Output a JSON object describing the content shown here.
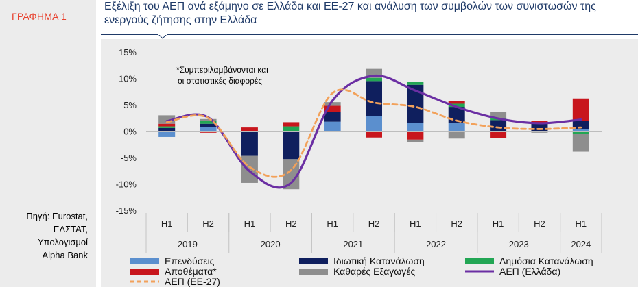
{
  "sidebar": {
    "graph_label": "ΓΡΑΦΗΜΑ 1",
    "source_lines": [
      "Πηγή: Eurostat,",
      "ΕΛΣΤΑΤ,",
      "Υπολογισμοί",
      "Alpha Bank"
    ]
  },
  "header": {
    "title": "Εξέλιξη του ΑΕΠ ανά εξάμηνο σε Ελλάδα και ΕΕ-27 και ανάλυση των συμβολών των συνιστωσών της ενεργούς ζήτησης στην Ελλάδα"
  },
  "colors": {
    "investment": "#5b8fce",
    "private_consumption": "#0f1f5e",
    "public_consumption": "#22a654",
    "inventories": "#c8161d",
    "net_exports": "#8e8e8e",
    "gdp_greece": "#6b2fa3",
    "gdp_eu27": "#f2a15a",
    "title_color": "#1f3a68"
  },
  "chart_data": {
    "type": "bar",
    "stacked": true,
    "categories": [
      "H1",
      "H2",
      "H1",
      "H2",
      "H1",
      "H2",
      "H1",
      "H2",
      "H1",
      "H2",
      "H1"
    ],
    "years": [
      {
        "label": "2019",
        "span": [
          0,
          1
        ]
      },
      {
        "label": "2020",
        "span": [
          2,
          3
        ]
      },
      {
        "label": "2021",
        "span": [
          4,
          5
        ]
      },
      {
        "label": "2022",
        "span": [
          6,
          7
        ]
      },
      {
        "label": "2023",
        "span": [
          8,
          9
        ]
      },
      {
        "label": "2024",
        "span": [
          10,
          10
        ]
      }
    ],
    "ylim": [
      -15,
      15
    ],
    "yticks": [
      15,
      10,
      5,
      0,
      -5,
      -10,
      -15
    ],
    "ytick_labels": [
      "15%",
      "10%",
      "5%",
      "0%",
      "-5%",
      "-10%",
      "-15%"
    ],
    "annotation": "*Συμπεριλαμβάνονται και οι στατιστικές διαφορές",
    "annotation_lines": [
      "*Συμπεριλαμβάνονται και",
      "οι στατιστικές διαφορές"
    ],
    "series": [
      {
        "name": "Επενδύσεις",
        "key": "investment",
        "kind": "bar",
        "values": [
          -1.1,
          0.8,
          0.0,
          0.0,
          1.8,
          2.8,
          1.6,
          1.6,
          0.0,
          0.0,
          0.4
        ]
      },
      {
        "name": "Ιδιωτική Κατανάλωση",
        "key": "private_consumption",
        "kind": "bar",
        "values": [
          0.6,
          0.6,
          -4.7,
          -5.3,
          1.8,
          6.7,
          7.2,
          3.0,
          2.1,
          1.4,
          1.6
        ]
      },
      {
        "name": "Δημόσια Κατανάλωση",
        "key": "public_consumption",
        "kind": "bar",
        "values": [
          0.3,
          0.6,
          0.0,
          0.9,
          0.0,
          0.6,
          0.5,
          0.6,
          0.3,
          0.0,
          -0.5
        ]
      },
      {
        "name": "Αποθέματα*",
        "key": "inventories",
        "kind": "bar",
        "values": [
          0.5,
          -0.3,
          0.7,
          0.8,
          1.2,
          -1.2,
          -1.6,
          0.5,
          -1.3,
          0.6,
          4.2
        ]
      },
      {
        "name": "Καθαρές Εξαγωγές",
        "key": "net_exports",
        "kind": "bar",
        "values": [
          1.6,
          0.3,
          -5.1,
          -5.7,
          0.7,
          1.7,
          -0.5,
          -1.4,
          1.3,
          -0.3,
          -3.4
        ]
      },
      {
        "name": "ΑΕΠ (Ελλάδα)",
        "key": "gdp_greece",
        "kind": "line",
        "values": [
          1.9,
          2.6,
          -7.6,
          -9.8,
          5.8,
          10.5,
          7.7,
          4.6,
          2.4,
          1.5,
          2.2
        ]
      },
      {
        "name": "ΑΕΠ (ΕΕ-27)",
        "key": "gdp_eu27",
        "kind": "dashed",
        "values": [
          1.7,
          2.5,
          -6.8,
          -7.4,
          7.2,
          5.4,
          4.6,
          2.0,
          0.7,
          0.4,
          0.7
        ]
      }
    ]
  }
}
